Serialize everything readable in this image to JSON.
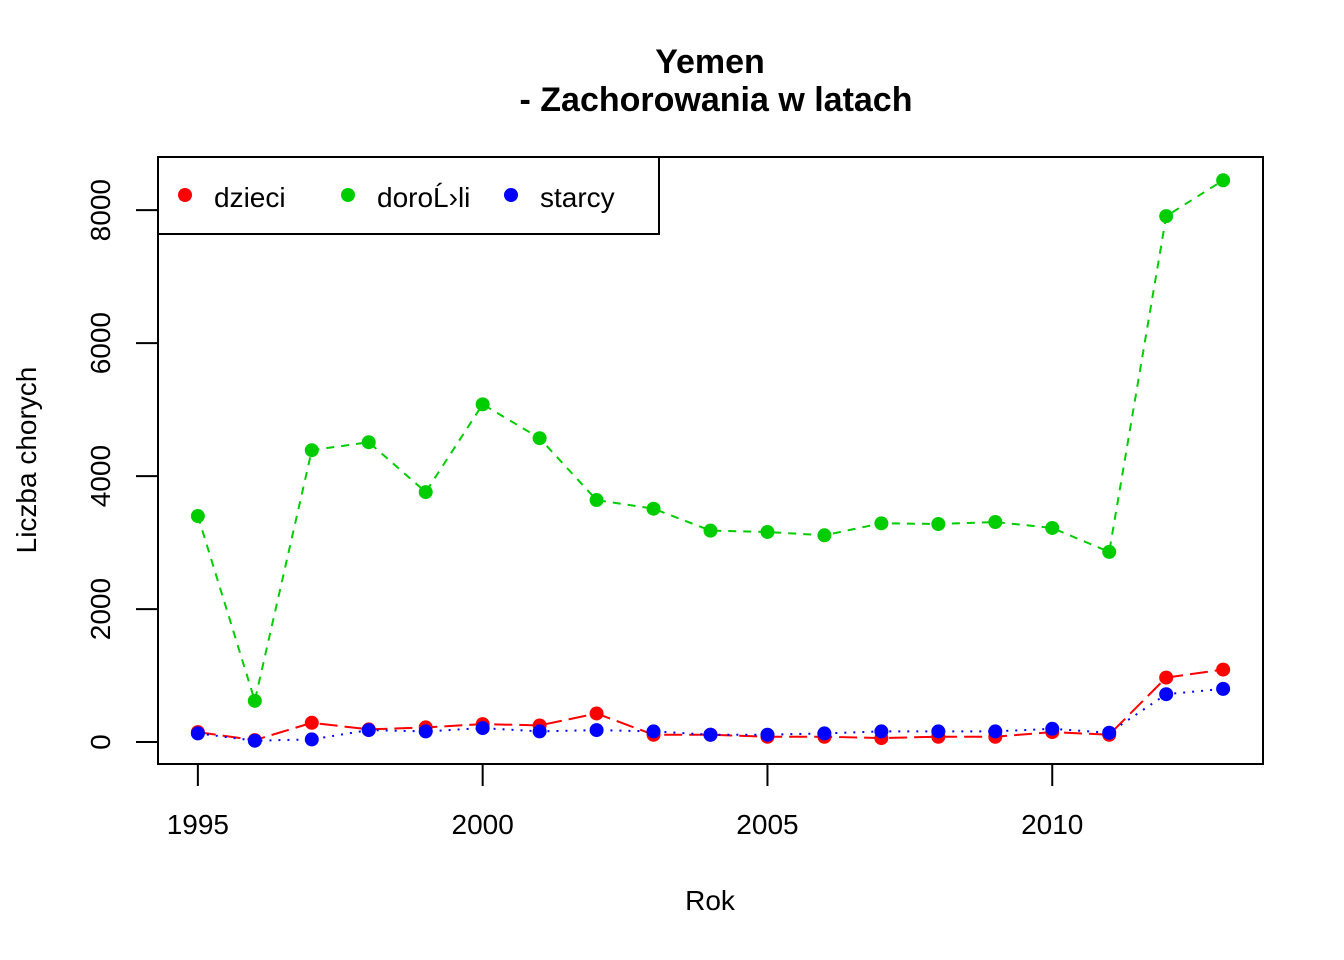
{
  "chart_data": {
    "type": "line",
    "title": [
      "Yemen",
      "- Zachorowania w latach"
    ],
    "xlabel": "Rok",
    "ylabel": "Liczba chorych",
    "xlim": [
      1994.3,
      2013.7
    ],
    "ylim": [
      -330,
      8800
    ],
    "xticks": [
      1995,
      2000,
      2005,
      2010
    ],
    "yticks": [
      0,
      2000,
      4000,
      6000,
      8000
    ],
    "grid": false,
    "legend_position": "top-left",
    "x": [
      1995,
      1996,
      1997,
      1998,
      1999,
      2000,
      2001,
      2002,
      2003,
      2004,
      2005,
      2006,
      2007,
      2008,
      2009,
      2010,
      2011,
      2012,
      2013
    ],
    "series": [
      {
        "name": "dzieci",
        "color": "#ff0000",
        "dash": "longdash",
        "values": [
          150,
          30,
          290,
          190,
          220,
          270,
          250,
          430,
          110,
          110,
          80,
          80,
          60,
          80,
          80,
          150,
          110,
          970,
          1090
        ]
      },
      {
        "name": "doroĹ›li",
        "color": "#00cd00",
        "dash": "dashed",
        "values": [
          3400,
          620,
          4390,
          4510,
          3760,
          5080,
          4570,
          3640,
          3510,
          3180,
          3160,
          3110,
          3290,
          3280,
          3310,
          3220,
          2860,
          7910,
          8450
        ]
      },
      {
        "name": "starcy",
        "color": "#0000ff",
        "dash": "dotted",
        "values": [
          130,
          20,
          40,
          180,
          160,
          210,
          160,
          180,
          160,
          110,
          110,
          130,
          160,
          160,
          160,
          200,
          140,
          720,
          800
        ]
      }
    ]
  }
}
